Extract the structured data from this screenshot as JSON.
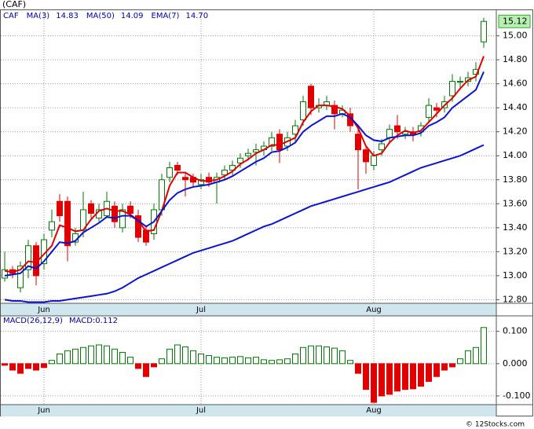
{
  "chart_data": [
    {
      "type": "candlestick",
      "title": "(CAF)",
      "symbol": "CAF",
      "categories": [
        null,
        null,
        null,
        null,
        null,
        "Jun",
        null,
        null,
        null,
        null,
        null,
        null,
        null,
        null,
        null,
        null,
        null,
        null,
        null,
        null,
        null,
        null,
        null,
        null,
        null,
        "Jul",
        null,
        null,
        null,
        null,
        null,
        null,
        null,
        null,
        null,
        null,
        null,
        null,
        null,
        null,
        null,
        null,
        null,
        null,
        null,
        null,
        null,
        "Aug",
        null,
        null,
        null,
        null,
        null,
        null,
        null,
        null,
        null,
        null,
        null,
        null,
        null,
        null
      ],
      "open": [
        12.98,
        13.05,
        12.9,
        13.05,
        13.25,
        13.1,
        13.38,
        13.62,
        13.62,
        13.28,
        13.38,
        13.6,
        13.48,
        13.5,
        13.58,
        13.4,
        13.58,
        13.5,
        13.38,
        13.35,
        13.55,
        13.82,
        13.92,
        13.82,
        13.82,
        13.76,
        13.82,
        13.78,
        13.84,
        13.88,
        13.94,
        14.0,
        14.03,
        14.05,
        14.08,
        14.18,
        14.08,
        14.18,
        14.3,
        14.58,
        14.4,
        14.42,
        14.42,
        14.35,
        14.35,
        14.18,
        14.05,
        13.92,
        14.05,
        14.15,
        14.25,
        14.18,
        14.2,
        14.2,
        14.32,
        14.4,
        14.4,
        14.5,
        14.62,
        14.62,
        14.68,
        14.95
      ],
      "high": [
        13.2,
        13.08,
        13.12,
        13.3,
        13.28,
        13.35,
        13.55,
        13.68,
        13.66,
        13.4,
        13.7,
        13.63,
        13.6,
        13.7,
        13.62,
        13.6,
        13.62,
        13.55,
        13.42,
        13.6,
        13.85,
        13.95,
        13.95,
        13.86,
        13.85,
        13.85,
        13.86,
        13.86,
        13.92,
        13.96,
        14.02,
        14.06,
        14.1,
        14.12,
        14.2,
        14.22,
        14.2,
        14.3,
        14.5,
        14.6,
        14.48,
        14.5,
        14.46,
        14.42,
        14.4,
        14.22,
        14.08,
        14.04,
        14.14,
        14.26,
        14.34,
        14.24,
        14.24,
        14.28,
        14.48,
        14.44,
        14.5,
        14.68,
        14.66,
        14.7,
        14.78,
        15.15
      ],
      "low": [
        12.95,
        12.98,
        12.86,
        12.98,
        12.92,
        13.05,
        13.32,
        13.45,
        13.12,
        13.25,
        13.32,
        13.48,
        13.45,
        13.48,
        13.4,
        13.36,
        13.48,
        13.28,
        13.25,
        13.3,
        13.5,
        13.78,
        13.84,
        13.66,
        13.74,
        13.72,
        13.74,
        13.6,
        13.8,
        13.84,
        13.9,
        13.96,
        13.92,
        14.0,
        14.04,
        13.94,
        14.04,
        14.12,
        14.25,
        14.34,
        14.36,
        14.38,
        14.22,
        14.32,
        14.2,
        13.72,
        13.85,
        13.88,
        14.0,
        14.1,
        14.14,
        14.14,
        14.12,
        14.16,
        14.28,
        14.32,
        14.36,
        14.45,
        14.56,
        14.58,
        14.62,
        14.9
      ],
      "close": [
        13.05,
        13.02,
        13.08,
        13.25,
        13.0,
        13.3,
        13.45,
        13.5,
        13.25,
        13.35,
        13.55,
        13.52,
        13.55,
        13.62,
        13.45,
        13.55,
        13.52,
        13.32,
        13.28,
        13.55,
        13.8,
        13.9,
        13.88,
        13.8,
        13.78,
        13.8,
        13.78,
        13.82,
        13.88,
        13.92,
        13.98,
        14.02,
        14.05,
        14.08,
        14.15,
        14.05,
        14.15,
        14.25,
        14.45,
        14.4,
        14.42,
        14.45,
        14.35,
        14.38,
        14.25,
        14.05,
        13.95,
        14.0,
        14.1,
        14.22,
        14.2,
        14.2,
        14.18,
        14.25,
        14.42,
        14.38,
        14.45,
        14.62,
        14.62,
        14.65,
        14.72,
        15.12
      ],
      "up_color": "#007a00",
      "down_color": "#e00000",
      "series": [
        {
          "name": "MA(3)",
          "color": "#e00000",
          "last_label": "14.83",
          "values": [
            13.04,
            13.03,
            13.05,
            13.12,
            13.11,
            13.18,
            13.25,
            13.42,
            13.4,
            13.37,
            13.38,
            13.47,
            13.54,
            13.56,
            13.54,
            13.54,
            13.51,
            13.46,
            13.37,
            13.38,
            13.54,
            13.75,
            13.86,
            13.86,
            13.82,
            13.79,
            13.79,
            13.8,
            13.83,
            13.87,
            13.93,
            13.97,
            14.02,
            14.05,
            14.09,
            14.09,
            14.12,
            14.15,
            14.28,
            14.37,
            14.42,
            14.42,
            14.41,
            14.39,
            14.33,
            14.23,
            14.08,
            14.0,
            14.02,
            14.11,
            14.17,
            14.21,
            14.19,
            14.21,
            14.28,
            14.35,
            14.42,
            14.48,
            14.56,
            14.63,
            14.66,
            14.83
          ]
        },
        {
          "name": "MA(50)",
          "color": "#0a14d2",
          "last_label": "14.09",
          "values": [
            12.8,
            12.79,
            12.79,
            12.78,
            12.78,
            12.78,
            12.79,
            12.79,
            12.8,
            12.81,
            12.82,
            12.83,
            12.84,
            12.85,
            12.87,
            12.9,
            12.94,
            12.98,
            13.01,
            13.04,
            13.07,
            13.1,
            13.13,
            13.16,
            13.19,
            13.21,
            13.23,
            13.25,
            13.27,
            13.29,
            13.32,
            13.35,
            13.38,
            13.41,
            13.43,
            13.46,
            13.49,
            13.52,
            13.55,
            13.58,
            13.6,
            13.62,
            13.64,
            13.66,
            13.68,
            13.7,
            13.72,
            13.74,
            13.76,
            13.78,
            13.81,
            13.84,
            13.87,
            13.9,
            13.92,
            13.94,
            13.96,
            13.98,
            14.0,
            14.03,
            14.06,
            14.09
          ]
        },
        {
          "name": "EMA(7)",
          "color": "#0a14d2",
          "last_label": "14.70",
          "values": [
            13.0,
            13.01,
            13.02,
            13.08,
            13.06,
            13.12,
            13.2,
            13.28,
            13.27,
            13.29,
            13.36,
            13.4,
            13.44,
            13.49,
            13.48,
            13.5,
            13.5,
            13.46,
            13.41,
            13.45,
            13.54,
            13.63,
            13.69,
            13.72,
            13.74,
            13.75,
            13.76,
            13.78,
            13.8,
            13.83,
            13.87,
            13.91,
            13.95,
            13.98,
            14.03,
            14.04,
            14.07,
            14.11,
            14.2,
            14.25,
            14.29,
            14.33,
            14.33,
            14.35,
            14.32,
            14.25,
            14.17,
            14.13,
            14.12,
            14.15,
            14.16,
            14.17,
            14.17,
            14.19,
            14.25,
            14.28,
            14.32,
            14.4,
            14.45,
            14.5,
            14.55,
            14.7
          ]
        }
      ],
      "ylim": [
        12.77,
        15.22
      ],
      "yticks": [
        {
          "value": 12.8,
          "label": "12.80"
        },
        {
          "value": 13.0,
          "label": "13.00"
        },
        {
          "value": 13.2,
          "label": "13.20"
        },
        {
          "value": 13.4,
          "label": "13.40"
        },
        {
          "value": 13.6,
          "label": "13.60"
        },
        {
          "value": 13.8,
          "label": "13.80"
        },
        {
          "value": 14.0,
          "label": "14.00"
        },
        {
          "value": 14.2,
          "label": "14.20"
        },
        {
          "value": 14.4,
          "label": "14.40"
        },
        {
          "value": 14.6,
          "label": "14.60"
        },
        {
          "value": 14.8,
          "label": "14.80"
        },
        {
          "value": 15.0,
          "label": "15.00"
        }
      ],
      "grid": true
    },
    {
      "type": "bar",
      "title": "MACD(26,12,9)",
      "subtitle": "MACD:0.112",
      "categories": [
        null,
        null,
        null,
        null,
        null,
        "Jun",
        null,
        null,
        null,
        null,
        null,
        null,
        null,
        null,
        null,
        null,
        null,
        null,
        null,
        null,
        null,
        null,
        null,
        null,
        null,
        "Jul",
        null,
        null,
        null,
        null,
        null,
        null,
        null,
        null,
        null,
        null,
        null,
        null,
        null,
        null,
        null,
        null,
        null,
        null,
        null,
        null,
        null,
        "Aug",
        null,
        null,
        null,
        null,
        null,
        null,
        null,
        null,
        null,
        null,
        null,
        null,
        null,
        null
      ],
      "values": [
        -0.005,
        -0.02,
        -0.03,
        -0.015,
        -0.02,
        -0.012,
        0.01,
        0.03,
        0.04,
        0.045,
        0.05,
        0.055,
        0.058,
        0.055,
        0.045,
        0.035,
        0.02,
        -0.015,
        -0.04,
        -0.01,
        0.015,
        0.045,
        0.058,
        0.052,
        0.04,
        0.03,
        0.025,
        0.02,
        0.018,
        0.02,
        0.022,
        0.018,
        0.02,
        0.012,
        0.01,
        0.012,
        0.015,
        0.03,
        0.05,
        0.055,
        0.055,
        0.052,
        0.048,
        0.04,
        0.01,
        -0.03,
        -0.08,
        -0.12,
        -0.1,
        -0.095,
        -0.085,
        -0.08,
        -0.078,
        -0.07,
        -0.055,
        -0.04,
        -0.02,
        -0.01,
        0.015,
        0.04,
        0.05,
        0.112
      ],
      "up_color": "#007a00",
      "down_color": "#e00000",
      "ylim": [
        -0.127,
        0.148
      ],
      "yticks": [
        {
          "value": 0.1,
          "label": "0.100"
        },
        {
          "value": 0,
          "label": "0.000"
        },
        {
          "value": -0.1,
          "label": "-0.100"
        }
      ],
      "grid": true
    }
  ],
  "footer": "© 12Stocks.com"
}
